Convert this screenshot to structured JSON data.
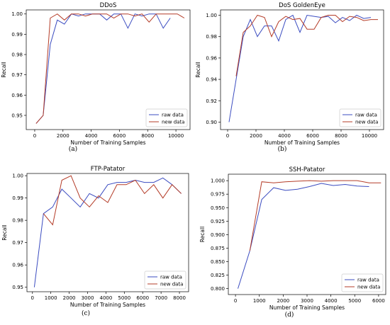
{
  "chart_data": [
    {
      "type": "line",
      "title": "DDoS",
      "xlabel": "Number of Training Samples",
      "ylabel": "Recall",
      "xlim": [
        -600,
        11000
      ],
      "ylim": [
        0.943,
        1.002
      ],
      "xticks": [
        0,
        2000,
        4000,
        6000,
        8000,
        10000
      ],
      "yticks": [
        0.95,
        0.96,
        0.97,
        0.98,
        0.99,
        1.0
      ],
      "ytick_labels": [
        "0.95",
        "0.96",
        "0.97",
        "0.98",
        "0.99",
        "1.00"
      ],
      "legend_position": "lower-right",
      "caption": "(a)",
      "series": [
        {
          "name": "raw data",
          "color": "#3b4cc0",
          "x": [
            100,
            600,
            1100,
            1600,
            2100,
            2600,
            3100,
            3600,
            4100,
            4600,
            5100,
            5600,
            6100,
            6600,
            7100,
            7600,
            8100,
            8600,
            9100,
            9600
          ],
          "y": [
            0.946,
            0.95,
            0.985,
            0.997,
            0.995,
            1.0,
            0.999,
            1.0,
            1.0,
            1.0,
            0.997,
            1.0,
            1.0,
            0.993,
            1.0,
            0.999,
            1.0,
            1.0,
            0.993,
            0.998
          ]
        },
        {
          "name": "new data",
          "color": "#b43c28",
          "x": [
            100,
            600,
            1100,
            1600,
            2100,
            2600,
            3100,
            3600,
            4100,
            4600,
            5100,
            5600,
            6100,
            6600,
            7100,
            7600,
            8100,
            8600,
            9100,
            9600,
            10100,
            10600
          ],
          "y": [
            0.946,
            0.95,
            0.998,
            1.0,
            0.997,
            1.0,
            1.0,
            0.999,
            1.0,
            1.0,
            1.0,
            0.998,
            1.0,
            1.0,
            0.999,
            1.0,
            0.996,
            1.0,
            1.0,
            1.0,
            1.0,
            0.998
          ]
        }
      ]
    },
    {
      "type": "line",
      "title": "DoS GoldenEye",
      "xlabel": "Number of Training Samples",
      "ylabel": "Recall",
      "xlim": [
        -500,
        11000
      ],
      "ylim": [
        0.893,
        1.005
      ],
      "xticks": [
        0,
        2000,
        4000,
        6000,
        8000,
        10000
      ],
      "yticks": [
        0.9,
        0.92,
        0.94,
        0.96,
        0.98,
        1.0
      ],
      "ytick_labels": [
        "0.90",
        "0.92",
        "0.94",
        "0.96",
        "0.98",
        "1.00"
      ],
      "legend_position": "lower-right",
      "caption": "(b)",
      "series": [
        {
          "name": "raw data",
          "color": "#3b4cc0",
          "x": [
            100,
            600,
            1100,
            1600,
            2100,
            2600,
            3100,
            3600,
            4100,
            4600,
            5100,
            5600,
            6100,
            6600,
            7100,
            7600,
            8100,
            8600,
            9100,
            9600,
            10100
          ],
          "y": [
            0.9,
            0.94,
            0.98,
            0.996,
            0.98,
            0.99,
            0.99,
            0.976,
            0.996,
            1.0,
            0.984,
            1.0,
            0.999,
            0.998,
            0.999,
            0.993,
            0.998,
            0.995,
            1.0,
            0.997,
            0.998
          ]
        },
        {
          "name": "new data",
          "color": "#b43c28",
          "x": [
            600,
            1100,
            1600,
            2100,
            2600,
            3100,
            3600,
            4100,
            4600,
            5100,
            5600,
            6100,
            6600,
            7100,
            7600,
            8100,
            8600,
            9100,
            9600,
            10100,
            10600
          ],
          "y": [
            0.943,
            0.984,
            0.99,
            1.0,
            0.998,
            0.98,
            0.994,
            0.999,
            0.996,
            0.997,
            0.987,
            0.987,
            0.998,
            1.0,
            1.0,
            0.994,
            0.999,
            0.998,
            0.995,
            0.996,
            0.996
          ]
        }
      ]
    },
    {
      "type": "line",
      "title": "FTP-Patator",
      "xlabel": "Number of Training Samples",
      "ylabel": "Recall",
      "xlim": [
        -300,
        8500
      ],
      "ylim": [
        0.948,
        1.001
      ],
      "xticks": [
        0,
        1000,
        2000,
        3000,
        4000,
        5000,
        6000,
        7000,
        8000
      ],
      "yticks": [
        0.95,
        0.96,
        0.97,
        0.98,
        0.99,
        1.0
      ],
      "ytick_labels": [
        "0.95",
        "0.96",
        "0.97",
        "0.98",
        "0.99",
        "1.00"
      ],
      "legend_position": "lower-right",
      "caption": "(c)",
      "series": [
        {
          "name": "raw data",
          "color": "#3b4cc0",
          "x": [
            100,
            600,
            1100,
            1600,
            2100,
            2600,
            3100,
            3600,
            4100,
            4600,
            5100,
            5600,
            6100,
            6600,
            7100,
            7600,
            8100
          ],
          "y": [
            0.95,
            0.983,
            0.986,
            0.994,
            0.99,
            0.986,
            0.992,
            0.99,
            0.996,
            0.997,
            0.997,
            0.998,
            0.997,
            0.997,
            0.999,
            0.996,
            0.992
          ]
        },
        {
          "name": "new data",
          "color": "#b43c28",
          "x": [
            600,
            1100,
            1600,
            2100,
            2600,
            3100,
            3600,
            4100,
            4600,
            5100,
            5600,
            6100,
            6600,
            7100,
            7600,
            8100
          ],
          "y": [
            0.983,
            0.978,
            0.998,
            1.0,
            0.99,
            0.986,
            0.991,
            0.988,
            0.996,
            0.996,
            0.998,
            0.992,
            0.996,
            0.99,
            0.996,
            0.992
          ]
        }
      ]
    },
    {
      "type": "line",
      "title": "SSH-Patator",
      "xlabel": "Number of Training Samples",
      "ylabel": "Recall",
      "xlim": [
        -300,
        6300
      ],
      "ylim": [
        0.789,
        1.012
      ],
      "xticks": [
        0,
        1000,
        2000,
        3000,
        4000,
        5000,
        6000
      ],
      "yticks": [
        0.8,
        0.825,
        0.85,
        0.875,
        0.9,
        0.925,
        0.95,
        0.975,
        1.0
      ],
      "ytick_labels": [
        "0.800",
        "0.825",
        "0.850",
        "0.875",
        "0.900",
        "0.925",
        "0.950",
        "0.975",
        "1.000"
      ],
      "legend_position": "lower-right",
      "caption": "(d)",
      "series": [
        {
          "name": "raw data",
          "color": "#3b4cc0",
          "x": [
            100,
            600,
            1100,
            1600,
            2100,
            2600,
            3100,
            3600,
            4100,
            4600,
            5100,
            5600
          ],
          "y": [
            0.8,
            0.87,
            0.965,
            0.987,
            0.982,
            0.984,
            0.989,
            0.995,
            0.991,
            0.993,
            0.99,
            0.989
          ]
        },
        {
          "name": "new data",
          "color": "#b43c28",
          "x": [
            600,
            1100,
            1600,
            2100,
            2600,
            3100,
            3600,
            4100,
            4600,
            5100,
            5600,
            6100
          ],
          "y": [
            0.87,
            0.998,
            0.996,
            0.998,
            0.999,
            1.0,
            0.999,
            1.0,
            1.0,
            1.0,
            0.996,
            0.996
          ]
        }
      ]
    }
  ]
}
